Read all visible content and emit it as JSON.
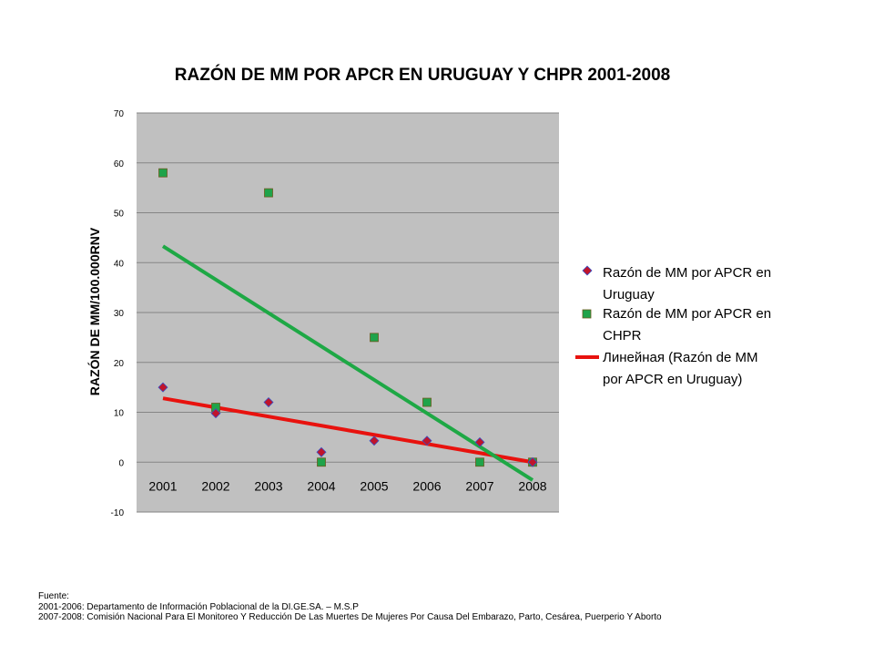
{
  "chart_data": {
    "type": "scatter",
    "title": "RAZÓN DE MM POR APCR EN URUGUAY Y CHPR  2001-2008",
    "xlabel": "",
    "ylabel": "RAZÓN DE MM/100.000RNV",
    "categories": [
      "2001",
      "2002",
      "2003",
      "2004",
      "2005",
      "2006",
      "2007",
      "2008"
    ],
    "ylim": [
      -10,
      70
    ],
    "yticks": [
      "70",
      "60",
      "50",
      "40",
      "30",
      "20",
      "10",
      "0",
      "-10"
    ],
    "grid": true,
    "legend_position": "right",
    "series": [
      {
        "name": "Razón de MM por APCR en Uruguay",
        "legend_lines": [
          "Razón de MM por APCR en",
          "Uruguay"
        ],
        "marker": "diamond",
        "color": "#c0142b",
        "values": [
          15,
          9.8,
          12,
          2,
          4.3,
          4.3,
          4,
          0
        ]
      },
      {
        "name": "Razón de MM por APCR en CHPR",
        "legend_lines": [
          "Razón de MM por APCR en",
          "CHPR"
        ],
        "marker": "square",
        "color": "#1fa34a",
        "values": [
          58,
          11,
          54,
          0,
          25,
          12,
          0,
          0
        ]
      }
    ],
    "trendlines": [
      {
        "name": "Линейная (Razón de MM por APCR en Uruguay)",
        "legend_lines": [
          "Линейная (Razón de MM",
          "por APCR en Uruguay)"
        ],
        "color": "#e8120e",
        "start": 12.8,
        "end": 0
      },
      {
        "name": "CHPR trend",
        "color": "#1ea845",
        "start": 43.3,
        "end": -3.6
      }
    ]
  },
  "colors": {
    "plot_background": "#c0c0c0",
    "gridline": "#858585"
  },
  "source": {
    "lines": [
      "Fuente:",
      "2001-2006: Departamento de Información Poblacional de la DI.GE.SA. – M.S.P",
      "2007-2008: Comisión Nacional Para El Monitoreo Y Reducción De Las Muertes De Mujeres Por Causa Del Embarazo, Parto, Cesárea, Puerperio Y Aborto"
    ]
  }
}
